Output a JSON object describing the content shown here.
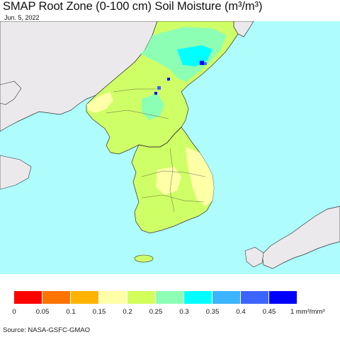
{
  "header": {
    "title": "SMAP Root Zone (0-100 cm) Soil Moisture (m³/m³)",
    "date": "Jun. 5, 2022"
  },
  "map": {
    "ocean_color": "#aefcfc",
    "land_outside_color": "#ece9ec",
    "region": "Korean Peninsula"
  },
  "legend": {
    "colors": [
      "#ff0000",
      "#ff7300",
      "#ffb300",
      "#ffffa8",
      "#d2ff5a",
      "#8cffb4",
      "#00ffff",
      "#3cb4ff",
      "#3c64ff",
      "#0000ff"
    ],
    "tick_labels": [
      "0",
      "0.05",
      "0.1",
      "0.15",
      "0.2",
      "0.25",
      "0.3",
      "0.35",
      "0.4",
      "0.45"
    ],
    "unit_label": "1 mm³/mm³"
  },
  "footer": {
    "source": "Source: NASA-GSFC-GMAO"
  }
}
